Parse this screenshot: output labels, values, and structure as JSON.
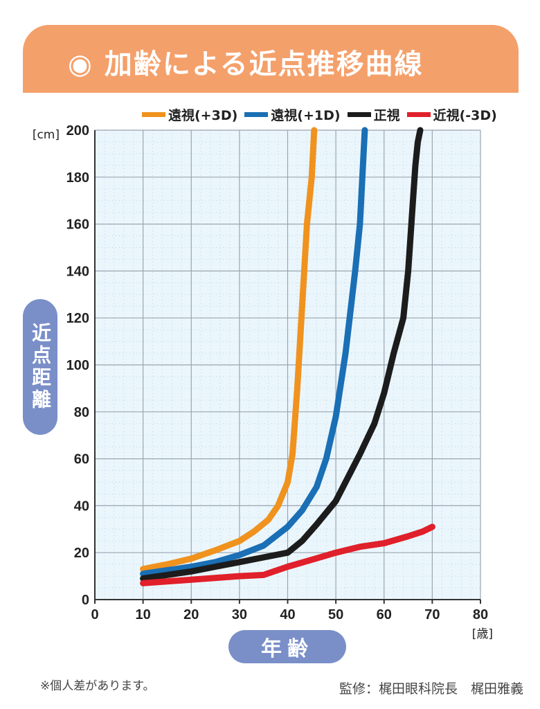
{
  "title": "◉ 加齢による近点推移曲線",
  "legend": [
    {
      "label": "遠視(+3D)",
      "color": "#f0921e"
    },
    {
      "label": "遠視(+1D)",
      "color": "#1a6fb5"
    },
    {
      "label": "正視",
      "color": "#1c1c1c"
    },
    {
      "label": "近視(-3D)",
      "color": "#e0202a"
    }
  ],
  "y_unit": "[cm]",
  "x_unit": "[歳]",
  "y_axis_label": "近点距離",
  "x_axis_label": "年齢",
  "note": "※個人差があります。",
  "credit": "監修：梶田眼科院長　梶田雅義",
  "chart_data": {
    "type": "line",
    "xlabel": "年齢",
    "ylabel": "近点距離",
    "xlim": [
      0,
      80
    ],
    "ylim": [
      0,
      200
    ],
    "xticks": [
      0,
      10,
      20,
      30,
      40,
      50,
      60,
      70,
      80
    ],
    "yticks": [
      0,
      20,
      40,
      60,
      80,
      100,
      120,
      140,
      160,
      180,
      200
    ],
    "grid": true,
    "legend_position": "top",
    "series": [
      {
        "name": "遠視(+3D)",
        "color": "#f0921e",
        "x": [
          10,
          15,
          20,
          25,
          30,
          33,
          36,
          38,
          40,
          41,
          42,
          43,
          44,
          45,
          45.5
        ],
        "y": [
          13,
          15,
          17.5,
          21,
          25,
          29,
          34,
          40,
          50,
          62,
          90,
          125,
          160,
          180,
          200
        ]
      },
      {
        "name": "遠視(+1D)",
        "color": "#1a6fb5",
        "x": [
          10,
          15,
          20,
          25,
          30,
          35,
          40,
          43,
          46,
          48,
          50,
          52,
          54,
          55,
          55.5,
          56
        ],
        "y": [
          11,
          12.5,
          14,
          16,
          19,
          23,
          31,
          38,
          48,
          60,
          78,
          105,
          140,
          160,
          180,
          200
        ]
      },
      {
        "name": "正視",
        "color": "#1c1c1c",
        "x": [
          10,
          15,
          20,
          25,
          30,
          35,
          40,
          43,
          46,
          50,
          55,
          58,
          60,
          62,
          64,
          65,
          66,
          66.5,
          67,
          67.5
        ],
        "y": [
          9,
          10.5,
          12,
          14,
          16,
          18,
          20,
          25,
          32,
          42,
          62,
          75,
          88,
          105,
          120,
          140,
          170,
          185,
          195,
          200
        ]
      },
      {
        "name": "近視(-3D)",
        "color": "#e0202a",
        "x": [
          10,
          20,
          30,
          35,
          40,
          45,
          50,
          55,
          60,
          65,
          68,
          70
        ],
        "y": [
          7,
          8.5,
          10,
          10.5,
          14,
          17,
          20,
          22.5,
          24,
          27,
          29,
          31
        ]
      }
    ]
  }
}
